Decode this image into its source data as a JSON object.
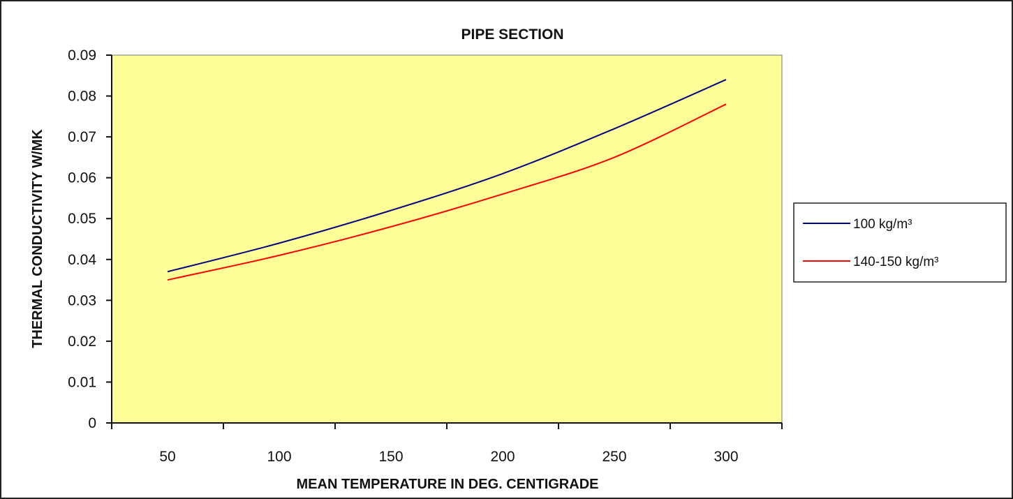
{
  "chart_data": {
    "type": "line",
    "title": "PIPE SECTION",
    "xlabel": "MEAN TEMPERATURE IN DEG. CENTIGRADE",
    "ylabel": "THERMAL CONDUCTIVITY W/MK",
    "x_categories": [
      "50",
      "100",
      "150",
      "200",
      "250",
      "300"
    ],
    "y_ticks": [
      "0",
      "0.01",
      "0.02",
      "0.03",
      "0.04",
      "0.05",
      "0.06",
      "0.07",
      "0.08",
      "0.09"
    ],
    "ylim": [
      0,
      0.09
    ],
    "grid": false,
    "plot_background": "#FFFF99",
    "legend_position": "right",
    "series": [
      {
        "name": "100 kg/m³",
        "color": "#000080",
        "values": [
          0.037,
          0.044,
          0.052,
          0.061,
          0.072,
          0.084
        ]
      },
      {
        "name": "140-150 kg/m³",
        "color": "#FF0000",
        "values": [
          0.035,
          0.041,
          0.048,
          0.056,
          0.065,
          0.078
        ]
      }
    ]
  }
}
